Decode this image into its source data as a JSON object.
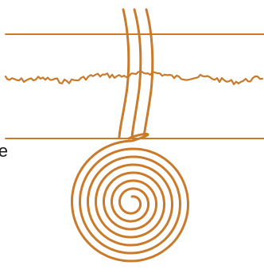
{
  "diagram": {
    "stroke_color": "#c97a2b",
    "label_color": "#1a1a1a",
    "cut_off_label": "e",
    "elements": [
      {
        "name": "upper-horizontal-line"
      },
      {
        "name": "rough-ground-line"
      },
      {
        "name": "lower-horizontal-line"
      },
      {
        "name": "vertical-strands",
        "count": 3
      },
      {
        "name": "spiral-coil"
      }
    ]
  }
}
